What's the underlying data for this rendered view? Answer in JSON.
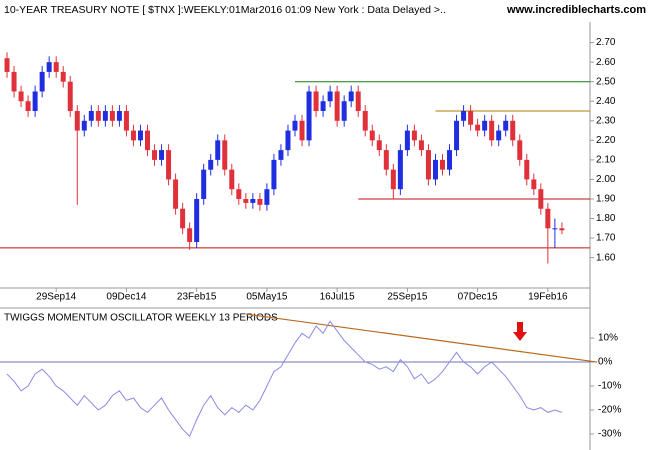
{
  "chart_data": {
    "type": "candlestick",
    "title": "10-YEAR TREASURY NOTE [ $TNX ]:WEEKLY:01Mar2016 01:09 New York : Data Delayed >..",
    "source": "www.incrediblecharts.com",
    "up_color": "#1f2fe0",
    "down_color": "#e0303a",
    "candles": [
      [
        2.62,
        2.65,
        2.52,
        2.55
      ],
      [
        2.55,
        2.58,
        2.42,
        2.45
      ],
      [
        2.45,
        2.48,
        2.37,
        2.4
      ],
      [
        2.4,
        2.43,
        2.32,
        2.35
      ],
      [
        2.35,
        2.48,
        2.32,
        2.45
      ],
      [
        2.45,
        2.58,
        2.42,
        2.55
      ],
      [
        2.55,
        2.63,
        2.52,
        2.6
      ],
      [
        2.6,
        2.63,
        2.52,
        2.55
      ],
      [
        2.55,
        2.58,
        2.47,
        2.5
      ],
      [
        2.5,
        2.53,
        2.32,
        2.35
      ],
      [
        2.35,
        2.38,
        1.87,
        2.25
      ],
      [
        2.25,
        2.33,
        2.22,
        2.3
      ],
      [
        2.3,
        2.38,
        2.27,
        2.35
      ],
      [
        2.35,
        2.38,
        2.27,
        2.3
      ],
      [
        2.3,
        2.38,
        2.27,
        2.35
      ],
      [
        2.35,
        2.38,
        2.27,
        2.3
      ],
      [
        2.3,
        2.38,
        2.27,
        2.35
      ],
      [
        2.35,
        2.38,
        2.22,
        2.25
      ],
      [
        2.25,
        2.28,
        2.17,
        2.2
      ],
      [
        2.2,
        2.28,
        2.17,
        2.25
      ],
      [
        2.25,
        2.28,
        2.12,
        2.15
      ],
      [
        2.15,
        2.18,
        2.07,
        2.1
      ],
      [
        2.1,
        2.18,
        2.07,
        2.15
      ],
      [
        2.15,
        2.18,
        1.97,
        2.0
      ],
      [
        2.0,
        2.03,
        1.82,
        1.85
      ],
      [
        1.85,
        1.88,
        1.72,
        1.75
      ],
      [
        1.75,
        1.78,
        1.64,
        1.68
      ],
      [
        1.68,
        1.93,
        1.65,
        1.9
      ],
      [
        1.9,
        2.08,
        1.87,
        2.05
      ],
      [
        2.05,
        2.13,
        2.02,
        2.1
      ],
      [
        2.1,
        2.23,
        2.07,
        2.2
      ],
      [
        2.2,
        2.23,
        2.02,
        2.05
      ],
      [
        2.05,
        2.08,
        1.92,
        1.95
      ],
      [
        1.95,
        1.98,
        1.87,
        1.9
      ],
      [
        1.9,
        1.93,
        1.85,
        1.88
      ],
      [
        1.88,
        1.93,
        1.85,
        1.9
      ],
      [
        1.9,
        1.93,
        1.84,
        1.87
      ],
      [
        1.87,
        1.98,
        1.84,
        1.95
      ],
      [
        1.95,
        2.13,
        1.92,
        2.1
      ],
      [
        2.1,
        2.18,
        2.07,
        2.15
      ],
      [
        2.15,
        2.28,
        2.12,
        2.25
      ],
      [
        2.25,
        2.33,
        2.22,
        2.3
      ],
      [
        2.3,
        2.33,
        2.17,
        2.2
      ],
      [
        2.2,
        2.48,
        2.17,
        2.45
      ],
      [
        2.45,
        2.48,
        2.32,
        2.35
      ],
      [
        2.35,
        2.43,
        2.32,
        2.4
      ],
      [
        2.4,
        2.48,
        2.37,
        2.45
      ],
      [
        2.45,
        2.48,
        2.27,
        2.3
      ],
      [
        2.3,
        2.43,
        2.27,
        2.4
      ],
      [
        2.4,
        2.48,
        2.37,
        2.45
      ],
      [
        2.45,
        2.48,
        2.32,
        2.35
      ],
      [
        2.35,
        2.38,
        2.22,
        2.25
      ],
      [
        2.25,
        2.28,
        2.17,
        2.2
      ],
      [
        2.2,
        2.23,
        2.12,
        2.15
      ],
      [
        2.15,
        2.18,
        2.02,
        2.05
      ],
      [
        2.05,
        2.08,
        1.9,
        1.95
      ],
      [
        1.95,
        2.18,
        1.92,
        2.15
      ],
      [
        2.15,
        2.28,
        2.12,
        2.25
      ],
      [
        2.25,
        2.28,
        2.17,
        2.2
      ],
      [
        2.2,
        2.23,
        2.12,
        2.15
      ],
      [
        2.15,
        2.18,
        1.97,
        2.0
      ],
      [
        2.0,
        2.13,
        1.97,
        2.1
      ],
      [
        2.1,
        2.13,
        2.02,
        2.05
      ],
      [
        2.05,
        2.18,
        2.02,
        2.15
      ],
      [
        2.15,
        2.33,
        2.12,
        2.3
      ],
      [
        2.3,
        2.38,
        2.27,
        2.35
      ],
      [
        2.35,
        2.38,
        2.25,
        2.28
      ],
      [
        2.28,
        2.31,
        2.22,
        2.25
      ],
      [
        2.25,
        2.33,
        2.22,
        2.3
      ],
      [
        2.3,
        2.33,
        2.17,
        2.2
      ],
      [
        2.2,
        2.28,
        2.17,
        2.25
      ],
      [
        2.25,
        2.33,
        2.22,
        2.3
      ],
      [
        2.3,
        2.33,
        2.17,
        2.2
      ],
      [
        2.2,
        2.23,
        2.07,
        2.1
      ],
      [
        2.1,
        2.13,
        1.97,
        2.0
      ],
      [
        2.0,
        2.03,
        1.92,
        1.95
      ],
      [
        1.95,
        1.98,
        1.82,
        1.85
      ],
      [
        1.85,
        1.88,
        1.57,
        1.75
      ],
      [
        1.75,
        1.8,
        1.65,
        1.75
      ],
      [
        1.75,
        1.78,
        1.72,
        1.74
      ]
    ],
    "xticks": [
      {
        "value": 7,
        "label": "29Sep14"
      },
      {
        "value": 17,
        "label": "09Dec14"
      },
      {
        "value": 27,
        "label": "23Feb15"
      },
      {
        "value": 37,
        "label": "05May15"
      },
      {
        "value": 47,
        "label": "16Jul15"
      },
      {
        "value": 57,
        "label": "25Sep15"
      },
      {
        "value": 67,
        "label": "07Dec15"
      },
      {
        "value": 77,
        "label": "19Feb16"
      }
    ],
    "xlim": [
      -1,
      83
    ],
    "ylim": [
      1.46,
      2.79
    ],
    "yticks": [
      {
        "value": 2.7,
        "label": "2.70"
      },
      {
        "value": 2.6,
        "label": "2.60"
      },
      {
        "value": 2.5,
        "label": "2.50"
      },
      {
        "value": 2.4,
        "label": "2.40"
      },
      {
        "value": 2.3,
        "label": "2.30"
      },
      {
        "value": 2.2,
        "label": "2.20"
      },
      {
        "value": 2.1,
        "label": "2.10"
      },
      {
        "value": 2.0,
        "label": "2.00"
      },
      {
        "value": 1.9,
        "label": "1.90"
      },
      {
        "value": 1.8,
        "label": "1.80"
      },
      {
        "value": 1.7,
        "label": "1.70"
      },
      {
        "value": 1.6,
        "label": "1.60"
      }
    ],
    "levels": [
      {
        "value": 2.5,
        "start": 41,
        "color": "#1a7a1a"
      },
      {
        "value": 2.35,
        "start": 61,
        "color": "#b07a00"
      },
      {
        "value": 1.9,
        "start": 50,
        "color": "#c01010"
      },
      {
        "value": 1.65,
        "start": -1,
        "color": "#c01010"
      }
    ],
    "oscillator": {
      "title": "TWIGGS MOMENTUM OSCILLATOR WEEKLY 13 PERIODS",
      "color": "#8a8ae6",
      "values": [
        -5,
        -8,
        -12,
        -10,
        -5,
        -3,
        -6,
        -10,
        -12,
        -15,
        -18,
        -14,
        -17,
        -20,
        -18,
        -14,
        -12,
        -16,
        -15,
        -19,
        -21,
        -18,
        -15,
        -20,
        -24,
        -28,
        -31,
        -24,
        -18,
        -14,
        -19,
        -22,
        -19,
        -21,
        -18,
        -20,
        -16,
        -10,
        -4,
        -2,
        3,
        8,
        12,
        10,
        15,
        12,
        17,
        13,
        9,
        6,
        3,
        0,
        -1,
        -3,
        -2,
        -4,
        1,
        -2,
        -7,
        -5,
        -9,
        -7,
        -4,
        0,
        4,
        0,
        -2,
        -5,
        -2,
        0,
        -3,
        -6,
        -10,
        -14,
        -19,
        -20,
        -19,
        -21,
        -20,
        -21
      ],
      "ylim": [
        -34.6,
        21.7
      ],
      "yticks": [
        {
          "value": 10,
          "label": "10%"
        },
        {
          "value": 0,
          "label": "0%"
        },
        {
          "value": -10,
          "label": "-10%"
        },
        {
          "value": -20,
          "label": "-20%"
        },
        {
          "value": -30,
          "label": "-30%"
        }
      ],
      "reference_line": 0,
      "trendline": [
        [
          34,
          20
        ],
        [
          84,
          0
        ]
      ],
      "trendline_color": "#b86a20"
    }
  }
}
